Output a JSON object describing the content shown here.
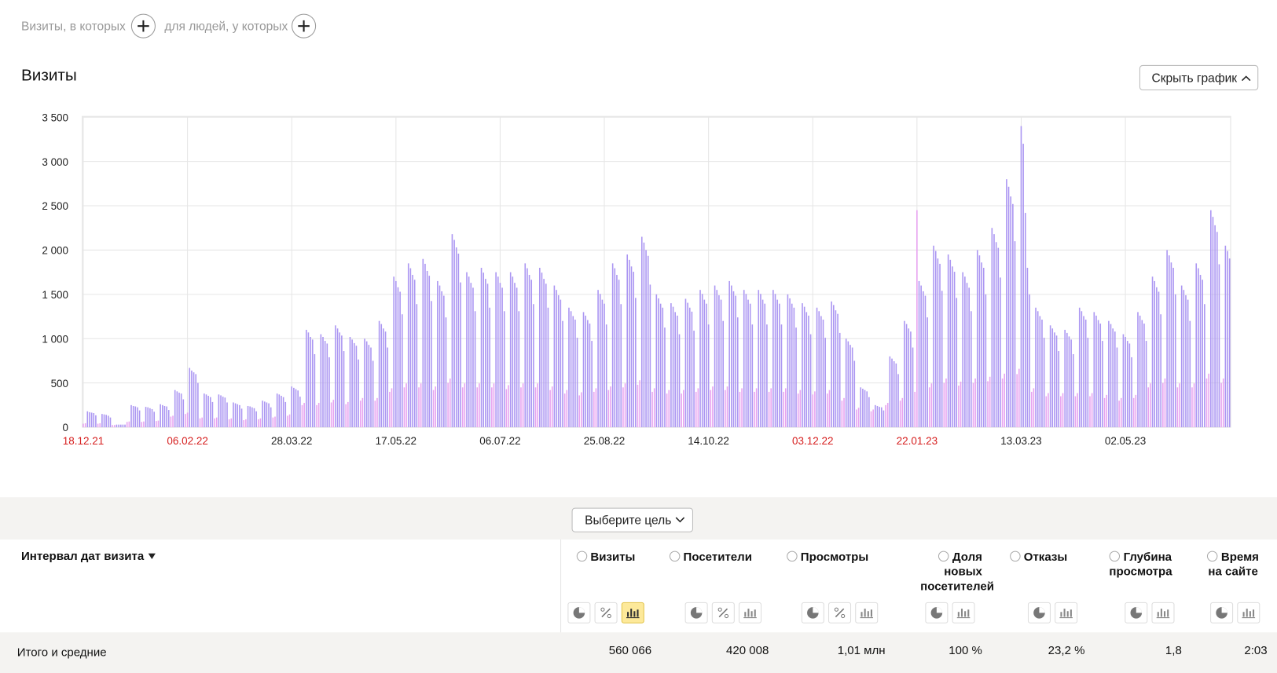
{
  "filters": {
    "visits_label": "Визиты, в которых",
    "people_label": "для людей, у которых"
  },
  "hide_chart": "Скрыть график",
  "chart_data": {
    "type": "bar",
    "title": "Визиты",
    "color": "#ab96f2",
    "weekend_color": "#e7a3f0",
    "grid": true,
    "ylim": [
      0,
      3500
    ],
    "yticks": [
      0,
      500,
      {
        "value": 1000,
        "label": "1 000"
      },
      {
        "value": 1500,
        "label": "1 500"
      },
      {
        "value": 2000,
        "label": "2 000"
      },
      {
        "value": 2500,
        "label": "2 500"
      },
      {
        "value": 3000,
        "label": "3 000"
      },
      {
        "value": 3500,
        "label": "3 500"
      }
    ],
    "xlim": [
      0,
      551
    ],
    "xticks": [
      {
        "value": 0,
        "label": "18.12.21"
      },
      {
        "value": 50,
        "label": "06.02.22"
      },
      {
        "value": 100,
        "label": "28.03.22"
      },
      {
        "value": 150,
        "label": "17.05.22"
      },
      {
        "value": 200,
        "label": "06.07.22"
      },
      {
        "value": 250,
        "label": "25.08.22"
      },
      {
        "value": 300,
        "label": "14.10.22"
      },
      {
        "value": 350,
        "label": "03.12.22"
      },
      {
        "value": 400,
        "label": "22.01.23"
      },
      {
        "value": 450,
        "label": "13.03.23"
      },
      {
        "value": 500,
        "label": "02.05.23"
      }
    ],
    "xtick_colors": [
      "#d61e1e",
      "#d61e1e",
      "#222",
      "#222",
      "#222",
      "#222",
      "#222",
      "#d61e1e",
      "#d61e1e",
      "#222",
      "#222"
    ],
    "values": [
      40,
      45,
      180,
      170,
      165,
      160,
      135,
      40,
      45,
      150,
      145,
      140,
      130,
      110,
      25,
      25,
      30,
      30,
      30,
      30,
      30,
      60,
      65,
      250,
      240,
      235,
      225,
      190,
      60,
      65,
      230,
      225,
      215,
      205,
      175,
      70,
      75,
      260,
      250,
      240,
      235,
      195,
      120,
      130,
      420,
      405,
      390,
      380,
      315,
      150,
      165,
      670,
      640,
      620,
      600,
      500,
      100,
      110,
      380,
      370,
      355,
      340,
      285,
      100,
      110,
      370,
      360,
      345,
      335,
      280,
      90,
      100,
      280,
      270,
      260,
      250,
      210,
      80,
      90,
      240,
      235,
      225,
      215,
      180,
      90,
      100,
      300,
      290,
      280,
      270,
      225,
      110,
      120,
      380,
      370,
      355,
      340,
      285,
      130,
      145,
      460,
      445,
      430,
      415,
      345,
      250,
      275,
      1100,
      1070,
      1020,
      990,
      825,
      250,
      275,
      1050,
      1020,
      975,
      945,
      790,
      280,
      310,
      1150,
      1115,
      1070,
      1035,
      860,
      260,
      285,
      1020,
      990,
      950,
      920,
      765,
      300,
      330,
      1000,
      970,
      930,
      900,
      750,
      300,
      330,
      1200,
      1165,
      1115,
      1080,
      900,
      400,
      440,
      1700,
      1650,
      1580,
      1530,
      1275,
      450,
      495,
      1850,
      1795,
      1720,
      1665,
      1390,
      450,
      495,
      1900,
      1845,
      1765,
      1710,
      1425,
      420,
      460,
      1650,
      1600,
      1535,
      1485,
      1240,
      500,
      550,
      2180,
      2115,
      2030,
      1960,
      1635,
      450,
      495,
      1750,
      1700,
      1630,
      1575,
      1310,
      450,
      495,
      1800,
      1745,
      1675,
      1620,
      1350,
      450,
      495,
      1750,
      1700,
      1630,
      1575,
      1310,
      430,
      475,
      1750,
      1700,
      1630,
      1575,
      1310,
      450,
      495,
      1850,
      1795,
      1720,
      1665,
      1390,
      450,
      495,
      1800,
      1745,
      1675,
      1620,
      1350,
      420,
      460,
      1600,
      1550,
      1490,
      1440,
      1200,
      380,
      420,
      1350,
      1310,
      1255,
      1215,
      1010,
      360,
      395,
      1300,
      1260,
      1210,
      1170,
      975,
      400,
      440,
      1550,
      1505,
      1440,
      1395,
      1160,
      420,
      460,
      1850,
      1795,
      1720,
      1665,
      1390,
      450,
      495,
      1950,
      1890,
      1815,
      1755,
      1460,
      480,
      530,
      2150,
      2085,
      2000,
      1935,
      1610,
      400,
      440,
      1500,
      1455,
      1395,
      1350,
      1125,
      380,
      420,
      1400,
      1360,
      1300,
      1260,
      1050,
      380,
      420,
      1450,
      1405,
      1350,
      1305,
      1090,
      400,
      440,
      1550,
      1505,
      1440,
      1395,
      1160,
      420,
      460,
      1600,
      1550,
      1490,
      1440,
      1200,
      420,
      460,
      1650,
      1600,
      1535,
      1485,
      1240,
      400,
      440,
      1550,
      1505,
      1440,
      1395,
      1160,
      400,
      440,
      1550,
      1505,
      1440,
      1395,
      1160,
      400,
      440,
      1550,
      1505,
      1440,
      1395,
      1160,
      400,
      440,
      1500,
      1455,
      1395,
      1350,
      1125,
      380,
      420,
      1400,
      1360,
      1300,
      1260,
      1050,
      370,
      405,
      1350,
      1310,
      1255,
      1215,
      1010,
      380,
      420,
      1420,
      1380,
      1320,
      1280,
      1065,
      300,
      330,
      1000,
      970,
      930,
      900,
      750,
      200,
      220,
      450,
      435,
      420,
      405,
      340,
      180,
      200,
      250,
      240,
      230,
      225,
      190,
      250,
      275,
      800,
      775,
      745,
      720,
      600,
      300,
      330,
      1200,
      1165,
      1115,
      1080,
      900,
      400,
      2450,
      1650,
      1600,
      1535,
      1485,
      1240,
      450,
      495,
      2050,
      1990,
      1905,
      1845,
      1540,
      500,
      550,
      1950,
      1890,
      1815,
      1755,
      1460,
      470,
      515,
      1750,
      1700,
      1630,
      1575,
      1310,
      500,
      550,
      2000,
      1940,
      1860,
      1800,
      1500,
      520,
      570,
      2250,
      2180,
      2090,
      2025,
      1690,
      550,
      605,
      2800,
      2715,
      2605,
      2520,
      2100,
      600,
      660,
      3400,
      3200,
      2420,
      1800,
      1500,
      400,
      440,
      1350,
      1310,
      1255,
      1215,
      1010,
      350,
      385,
      1150,
      1115,
      1070,
      1035,
      860,
      350,
      385,
      1100,
      1065,
      1025,
      990,
      825,
      350,
      385,
      1350,
      1310,
      1255,
      1215,
      1010,
      350,
      385,
      1300,
      1260,
      1210,
      1170,
      975,
      330,
      365,
      1200,
      1165,
      1115,
      1080,
      900,
      300,
      330,
      1050,
      1020,
      975,
      945,
      790,
      330,
      365,
      1300,
      1260,
      1210,
      1170,
      975,
      450,
      495,
      1700,
      1650,
      1580,
      1530,
      1275,
      500,
      550,
      2000,
      1940,
      1860,
      1800,
      1500,
      450,
      495,
      1600,
      1550,
      1490,
      1440,
      1200,
      450,
      495,
      1850,
      1795,
      1720,
      1665,
      1390,
      550,
      605,
      2450,
      2375,
      2280,
      2205,
      1840,
      500,
      550,
      2050,
      1990,
      1905
    ]
  },
  "goal_select": "Выберите цель",
  "table": {
    "dimension": "Интервал дат визита",
    "columns": [
      {
        "name": "Визиты",
        "total": "560 066"
      },
      {
        "name": "Посетители",
        "total": "420 008"
      },
      {
        "name": "Просмотры",
        "total": "1,01 млн"
      },
      {
        "name": "Доля новых посетителей",
        "total": "100 %"
      },
      {
        "name": "Отказы",
        "total": "23,2 %"
      },
      {
        "name": "Глубина просмотра",
        "total": "1,8"
      },
      {
        "name": "Время на сайте",
        "total": "2:03"
      }
    ],
    "totals_label": "Итого и средние"
  }
}
